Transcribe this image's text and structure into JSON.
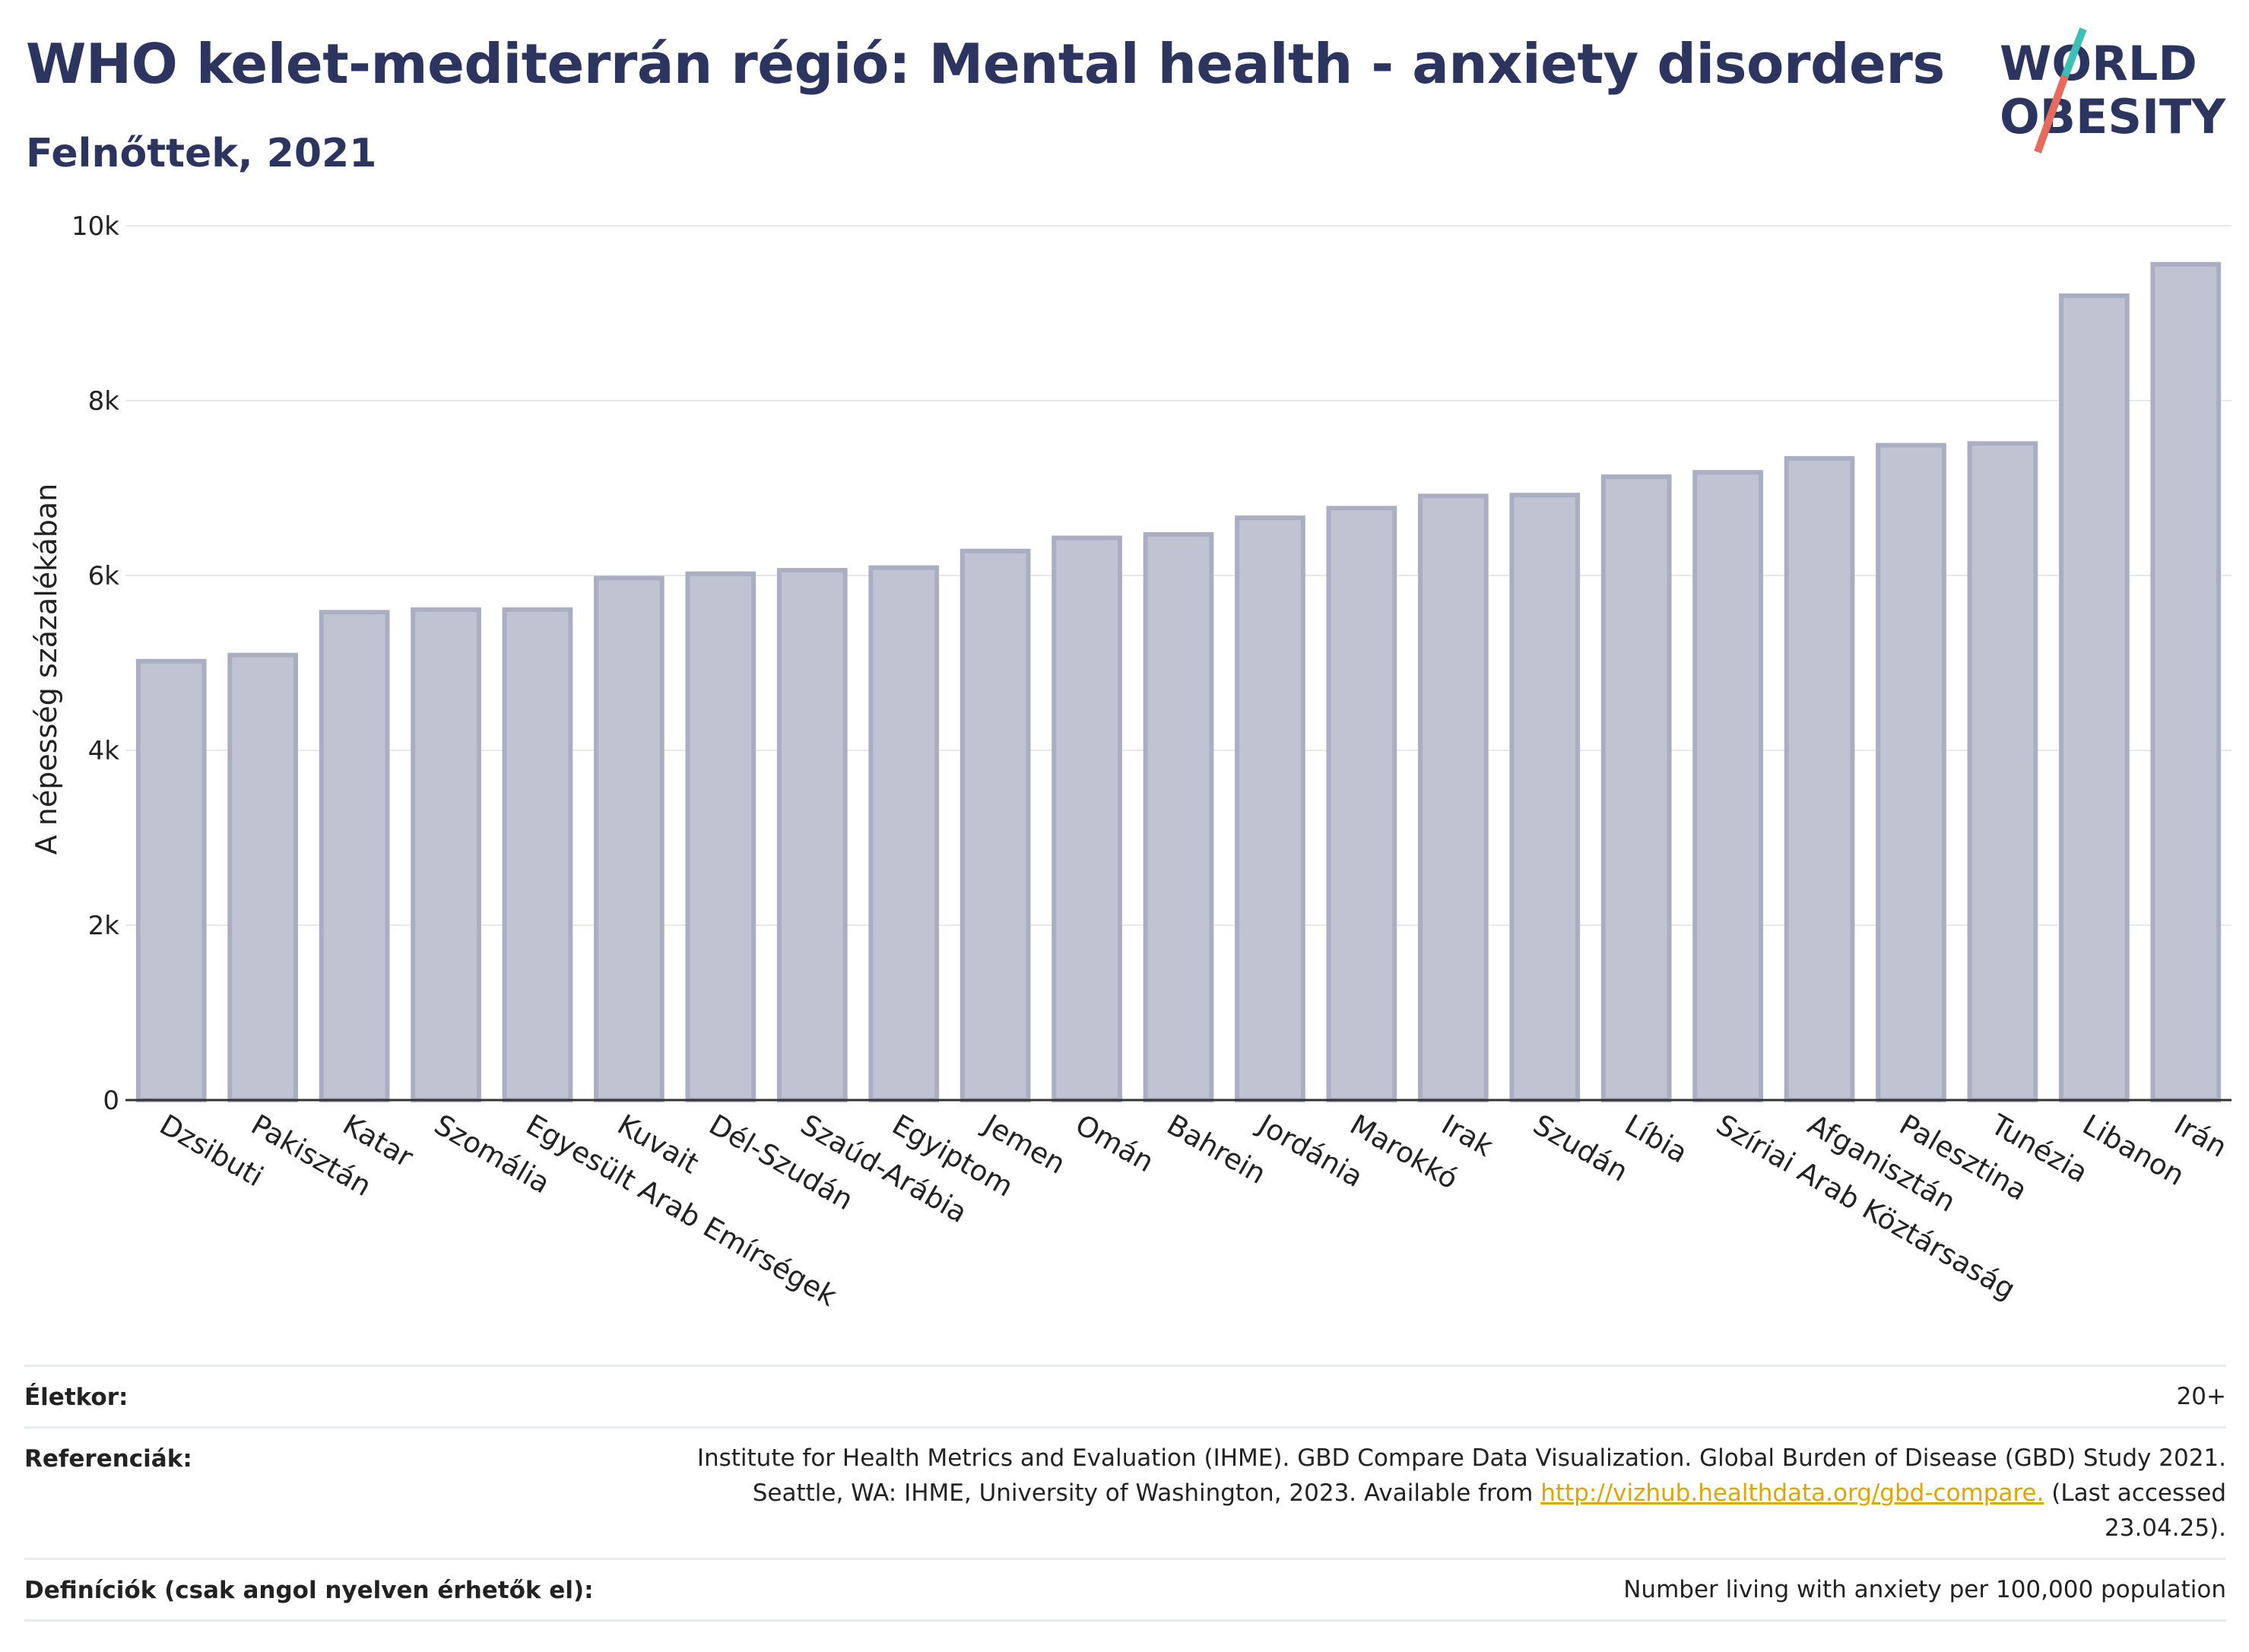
{
  "header": {
    "title": "WHO kelet-mediterrán régió: Mental health - anxiety disorders",
    "subtitle": "Felnőttek, 2021"
  },
  "logo": {
    "line1": "WORLD",
    "line2": "OBESITY",
    "colors": {
      "text": "#2b3560",
      "slash_teal": "#3bbfb6",
      "slash_red": "#e86a5a"
    }
  },
  "chart_data": {
    "type": "bar",
    "title": "WHO kelet-mediterrán régió: Mental health - anxiety disorders",
    "subtitle": "Felnőttek, 2021",
    "xlabel": "",
    "ylabel": "A népesség százalékában",
    "ylim": [
      0,
      10000
    ],
    "yticks": [
      0,
      2000,
      4000,
      6000,
      8000,
      10000
    ],
    "ytick_labels": [
      "0",
      "2k",
      "4k",
      "6k",
      "8k",
      "10k"
    ],
    "grid": true,
    "bar_color": "#c0c4d2",
    "bar_edge_color": "#a9aec2",
    "categories": [
      "Dzsibuti",
      "Pakisztán",
      "Katar",
      "Szomália",
      "Egyesült Arab Emírségek",
      "Kuvait",
      "Dél-Szudán",
      "Szaúd-Arábia",
      "Egyiptom",
      "Jemen",
      "Omán",
      "Bahrein",
      "Jordánia",
      "Marokkó",
      "Irak",
      "Szudán",
      "Líbia",
      "Szíriai Arab Köztársaság",
      "Afganisztán",
      "Palesztina",
      "Tunézia",
      "Libanon",
      "Irán"
    ],
    "values": [
      5020,
      5090,
      5580,
      5610,
      5610,
      5970,
      6020,
      6060,
      6090,
      6280,
      6430,
      6470,
      6660,
      6770,
      6910,
      6920,
      7130,
      7180,
      7340,
      7490,
      7510,
      9200,
      9560
    ]
  },
  "info": {
    "rows": [
      {
        "key": "Életkor:",
        "value": "20+"
      },
      {
        "key": "Referenciák:",
        "value_pre": "Institute for Health Metrics and Evaluation (IHME). GBD Compare Data Visualization. Global Burden of Disease (GBD) Study 2021. Seattle, WA: IHME, University of Washington, 2023. Available from ",
        "link": "http://vizhub.healthdata.org/gbd-compare.",
        "value_post": " (Last accessed 23.04.25)."
      },
      {
        "key": "Definíciók (csak angol nyelven érhetők el):",
        "value": "Number living with anxiety per 100,000 population"
      }
    ]
  }
}
